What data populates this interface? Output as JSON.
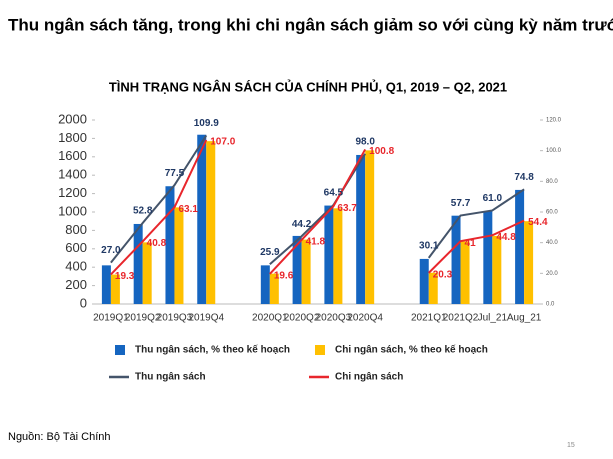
{
  "title": "Thu ngân sách tăng, trong khi chi ngân sách giảm so với cùng kỳ năm trước",
  "chart_data": {
    "type": "combo",
    "title": "TÌNH TRẠNG NGÂN SÁCH CỦA CHÍNH PHỦ, Q1, 2019 – Q2, 2021",
    "categories": [
      "2019Q1",
      "2019Q2",
      "2019Q3",
      "2019Q4",
      null,
      "2020Q1",
      "2020Q2",
      "2020Q3",
      "2020Q4",
      null,
      "2021Q1",
      "2021Q2",
      "Jul_21",
      "Aug_21"
    ],
    "ylim": [
      0,
      2000
    ],
    "yticks": [
      0,
      200,
      400,
      600,
      800,
      1000,
      1200,
      1400,
      1600,
      1800,
      2000
    ],
    "y2lim": [
      0,
      120
    ],
    "y2ticks": [
      {
        "value": 0,
        "label": "0.0"
      },
      {
        "value": 20,
        "label": "20.0"
      },
      {
        "value": 40,
        "label": "40.0"
      },
      {
        "value": 60,
        "label": "60.0"
      },
      {
        "value": 80,
        "label": "80.0"
      },
      {
        "value": 100,
        "label": "100.0"
      },
      {
        "value": 120,
        "label": "120.0"
      }
    ],
    "series": [
      {
        "name": "Thu ngân sách, % theo kế hoạch",
        "type": "bar",
        "color": "#1565c0",
        "values": [
          420,
          870,
          1280,
          1840,
          null,
          420,
          740,
          1070,
          1620,
          null,
          490,
          960,
          1010,
          1240
        ]
      },
      {
        "name": "Chi ngân sách, % theo kế hoạch",
        "type": "bar",
        "color": "#ffc000",
        "values": [
          320,
          670,
          1050,
          1770,
          null,
          330,
          700,
          1040,
          1670,
          null,
          340,
          680,
          740,
          900
        ]
      },
      {
        "name": "Thu ngân sách",
        "type": "line",
        "axis": "y2",
        "color": "#44546a",
        "values": [
          27,
          52.8,
          77.5,
          109.9,
          null,
          25.9,
          44.2,
          64.5,
          98,
          null,
          30.1,
          57.7,
          61,
          74.8
        ],
        "value_labels": [
          "27.0",
          "52.8",
          "77.5",
          "109.9",
          null,
          "25.9",
          "44.2",
          "64.5",
          "98.0",
          null,
          "30.1",
          "57.7",
          "61.0",
          "74.8"
        ]
      },
      {
        "name": "Chi ngân sách",
        "type": "line",
        "axis": "y2",
        "color": "#e8262c",
        "values": [
          19.3,
          40.8,
          63.1,
          107,
          null,
          19.6,
          41.8,
          63.7,
          100.8,
          null,
          20.3,
          41,
          44.8,
          54.4
        ],
        "value_labels": [
          "19.3",
          "40.8",
          "63.1",
          "107.0",
          null,
          "19.6",
          "41.8",
          "63.7",
          "100.8",
          null,
          "20.3",
          "41",
          "44.8",
          "54.4"
        ]
      }
    ]
  },
  "source": "Nguồn: Bộ Tài Chính",
  "page_number": "15"
}
